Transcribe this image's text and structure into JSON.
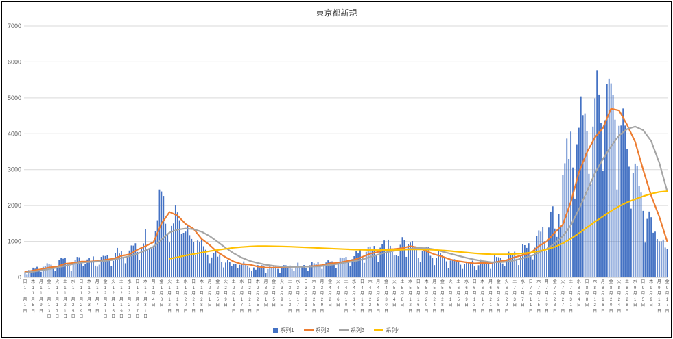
{
  "chart_data": {
    "type": "bar+line combo",
    "title": "東京都新規",
    "ylim": [
      0,
      7000
    ],
    "y_ticks": [
      0,
      1000,
      2000,
      3000,
      4000,
      5000,
      6000,
      7000
    ],
    "tick_every_days": 4,
    "grid": true,
    "legend_position": "bottom",
    "x_tick_labels": [
      "日11月1日",
      "木11月5日",
      "月11月9日",
      "金11月13日",
      "火11月17日",
      "土11月21日",
      "水11月25日",
      "日11月29日",
      "木12月3日",
      "月12月7日",
      "金12月11日",
      "火12月15日",
      "土12月19日",
      "水12月23日",
      "日12月27日",
      "木12月31日",
      "月1月4日",
      "金1月8日",
      "火1月12日",
      "土1月16日",
      "水1月20日",
      "日1月24日",
      "木1月28日",
      "月2月1日",
      "金2月5日",
      "火2月9日",
      "土2月13日",
      "水2月17日",
      "日2月21日",
      "木2月25日",
      "月3月1日",
      "金3月5日",
      "火3月9日",
      "土3月13日",
      "水3月17日",
      "日3月21日",
      "木3月25日",
      "月3月29日",
      "金4月2日",
      "火4月6日",
      "土4月10日",
      "水4月14日",
      "日4月18日",
      "木4月22日",
      "月4月26日",
      "金4月30日",
      "火5月4日",
      "土5月8日",
      "水5月12日",
      "日5月16日",
      "木5月20日",
      "月5月24日",
      "金5月28日",
      "火6月1日",
      "土6月5日",
      "水6月9日",
      "日6月13日",
      "木6月17日",
      "月6月21日",
      "金6月25日",
      "火6月29日",
      "土7月3日",
      "水7月7日",
      "日7月11日",
      "木7月15日",
      "月7月19日",
      "金7月23日",
      "火7月27日",
      "土7月31日",
      "水8月4日",
      "日8月8日",
      "木8月12日",
      "月8月16日",
      "金8月20日",
      "火8月24日",
      "土8月28日",
      "水9月1日",
      "日9月5日",
      "木9月9日",
      "月9月13日",
      "金9月17日"
    ],
    "series": [
      {
        "name": "系列1",
        "type": "bar",
        "color": "#4472C4",
        "values": [
          116,
          87,
          209,
          122,
          269,
          242,
          294,
          189,
          157,
          293,
          317,
          393,
          374,
          352,
          255,
          180,
          298,
          493,
          534,
          522,
          539,
          391,
          314,
          186,
          401,
          481,
          570,
          561,
          418,
          311,
          372,
          500,
          533,
          449,
          584,
          327,
          299,
          352,
          572,
          602,
          595,
          621,
          480,
          305,
          460,
          678,
          822,
          664,
          736,
          556,
          392,
          563,
          748,
          888,
          884,
          949,
          708,
          481,
          856,
          944,
          1337,
          783,
          814,
          816,
          884,
          1278,
          1591,
          2447,
          2392,
          2268,
          1494,
          1219,
          970,
          1433,
          1502,
          2001,
          1809,
          1592,
          1204,
          1240,
          1274,
          1471,
          1175,
          1070,
          986,
          618,
          1026,
          973,
          1064,
          868,
          769,
          633,
          393,
          556,
          676,
          734,
          577,
          639,
          429,
          276,
          412,
          491,
          434,
          307,
          369,
          371,
          266,
          350,
          378,
          445,
          353,
          327,
          272,
          178,
          275,
          213,
          340,
          270,
          337,
          329,
          121,
          232,
          316,
          279,
          301,
          293,
          237,
          116,
          290,
          340,
          335,
          304,
          330,
          239,
          175,
          300,
          409,
          323,
          303,
          342,
          256,
          187,
          337,
          420,
          394,
          376,
          430,
          313,
          234,
          364,
          414,
          475,
          440,
          446,
          355,
          249,
          399,
          555,
          545,
          537,
          570,
          421,
          306,
          510,
          591,
          729,
          667,
          759,
          543,
          405,
          711,
          843,
          861,
          759,
          876,
          635,
          425,
          828,
          925,
          1027,
          698,
          1050,
          879,
          708,
          609,
          621,
          591,
          907,
          1121,
          1032,
          573,
          925,
          969,
          1010,
          854,
          772,
          542,
          419,
          732,
          766,
          843,
          854,
          602,
          535,
          340,
          542,
          743,
          684,
          614,
          539,
          448,
          260,
          471,
          487,
          508,
          472,
          436,
          351,
          235,
          369,
          440,
          439,
          435,
          467,
          304,
          209,
          337,
          501,
          452,
          453,
          388,
          376,
          236,
          435,
          619,
          570,
          562,
          534,
          386,
          317,
          476,
          714,
          673,
          660,
          716,
          518,
          342,
          593,
          920,
          896,
          822,
          950,
          614,
          502,
          830,
          1149,
          1308,
          1271,
          1410,
          1008,
          727,
          1387,
          1832,
          1979,
          1359,
          1128,
          1763,
          1429,
          2848,
          3177,
          3865,
          3300,
          4058,
          3058,
          2195,
          3709,
          4166,
          5042,
          4515,
          4566,
          4066,
          2884,
          2612,
          4200,
          4989,
          5773,
          5094,
          4295,
          2962,
          4377,
          5386,
          5534,
          5405,
          5074,
          4392,
          2447,
          4220,
          4228,
          4704,
          4227,
          3581,
          3081,
          1915,
          2909,
          3168,
          3099,
          2539,
          2362,
          1853,
          968,
          1629,
          1834,
          1675,
          1242,
          1273,
          1067,
          1004,
          1004,
          1052,
          831,
          782
        ]
      },
      {
        "name": "系列2",
        "type": "line",
        "color": "#ED7D31",
        "sample_step": 4,
        "values": [
          150,
          190,
          225,
          275,
          300,
          380,
          400,
          440,
          440,
          455,
          490,
          520,
          600,
          640,
          770,
          870,
          980,
          1500,
          1820,
          1720,
          1490,
          1350,
          1070,
          900,
          700,
          560,
          440,
          370,
          355,
          300,
          270,
          270,
          270,
          290,
          300,
          300,
          315,
          340,
          390,
          405,
          450,
          490,
          570,
          660,
          710,
          780,
          790,
          815,
          870,
          830,
          730,
          640,
          580,
          500,
          450,
          420,
          390,
          400,
          400,
          440,
          480,
          560,
          620,
          680,
          870,
          1000,
          1250,
          1470,
          2100,
          2920,
          3480,
          3900,
          4160,
          4700,
          4650,
          4250,
          3780,
          3000,
          2280,
          1700,
          1000
        ]
      },
      {
        "name": "系列3",
        "type": "line",
        "color": "#A5A5A5",
        "sample_step": 4,
        "values": [
          130,
          160,
          195,
          230,
          270,
          320,
          370,
          410,
          430,
          440,
          460,
          490,
          540,
          590,
          660,
          750,
          850,
          1050,
          1250,
          1330,
          1360,
          1340,
          1270,
          1150,
          990,
          820,
          670,
          550,
          460,
          400,
          350,
          320,
          300,
          290,
          290,
          295,
          300,
          315,
          345,
          375,
          415,
          450,
          500,
          570,
          635,
          700,
          740,
          770,
          800,
          820,
          815,
          780,
          720,
          660,
          600,
          545,
          495,
          455,
          425,
          420,
          435,
          475,
          535,
          595,
          685,
          795,
          945,
          1145,
          1450,
          1900,
          2400,
          2900,
          3300,
          3650,
          3950,
          4130,
          4200,
          4100,
          3800,
          3200,
          2400
        ]
      },
      {
        "name": "系列4",
        "type": "line",
        "color": "#FFC000",
        "sample_step": 4,
        "values": [
          null,
          null,
          null,
          null,
          null,
          null,
          null,
          null,
          null,
          null,
          null,
          null,
          null,
          null,
          null,
          null,
          null,
          null,
          520,
          560,
          610,
          650,
          690,
          730,
          765,
          795,
          825,
          845,
          860,
          870,
          870,
          865,
          860,
          855,
          845,
          835,
          825,
          815,
          805,
          795,
          785,
          775,
          768,
          762,
          760,
          762,
          766,
          772,
          778,
          780,
          776,
          766,
          752,
          734,
          712,
          692,
          672,
          656,
          645,
          640,
          643,
          653,
          668,
          693,
          728,
          778,
          848,
          948,
          1078,
          1228,
          1388,
          1548,
          1698,
          1848,
          1978,
          2088,
          2178,
          2258,
          2328,
          2378,
          2400
        ]
      }
    ]
  }
}
